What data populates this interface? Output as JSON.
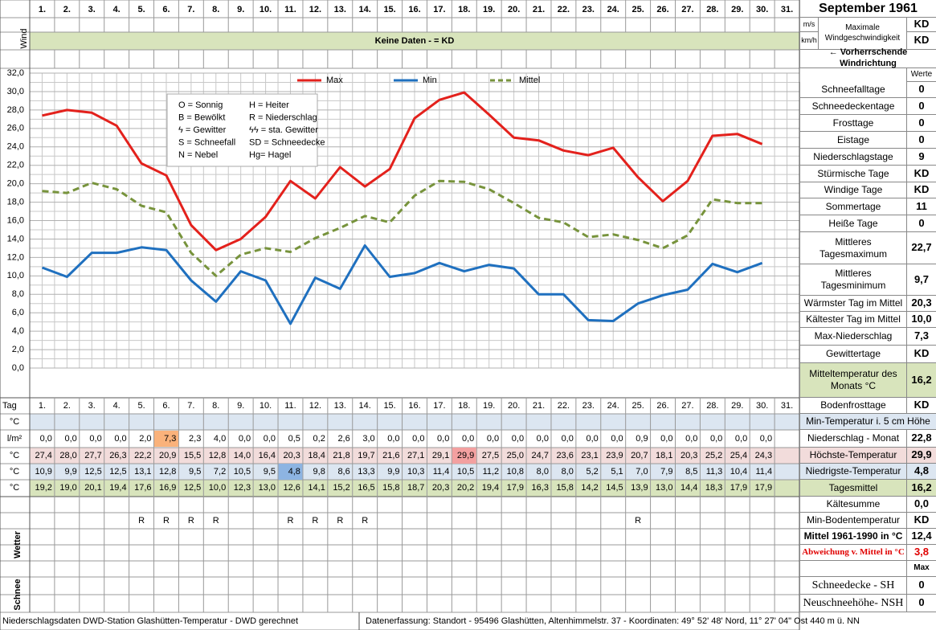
{
  "chart_data": {
    "type": "line",
    "categories": [
      "1.",
      "2.",
      "3.",
      "4.",
      "5.",
      "6.",
      "7.",
      "8.",
      "9.",
      "10.",
      "11.",
      "12.",
      "13.",
      "14.",
      "15.",
      "16.",
      "17.",
      "18.",
      "19.",
      "20.",
      "21.",
      "22.",
      "23.",
      "24.",
      "25.",
      "26.",
      "27.",
      "28.",
      "29.",
      "30.",
      "31."
    ],
    "series": [
      {
        "name": "Max",
        "color": "#e3211c",
        "dash": false,
        "values": [
          27.4,
          28.0,
          27.7,
          26.3,
          22.2,
          20.9,
          15.5,
          12.8,
          14.0,
          16.4,
          20.3,
          18.4,
          21.8,
          19.7,
          21.6,
          27.1,
          29.1,
          29.9,
          27.5,
          25.0,
          24.7,
          23.6,
          23.1,
          23.9,
          20.7,
          18.1,
          20.3,
          25.2,
          25.4,
          24.3,
          null
        ]
      },
      {
        "name": "Min",
        "color": "#1f70bf",
        "dash": false,
        "values": [
          10.9,
          9.9,
          12.5,
          12.5,
          13.1,
          12.8,
          9.5,
          7.2,
          10.5,
          9.5,
          4.8,
          9.8,
          8.6,
          13.3,
          9.9,
          10.3,
          11.4,
          10.5,
          11.2,
          10.8,
          8.0,
          8.0,
          5.2,
          5.1,
          7.0,
          7.9,
          8.5,
          11.3,
          10.4,
          11.4,
          null
        ]
      },
      {
        "name": "Mittel",
        "color": "#77933c",
        "dash": true,
        "values": [
          19.2,
          19.0,
          20.1,
          19.4,
          17.6,
          16.9,
          12.5,
          10.0,
          12.3,
          13.0,
          12.6,
          14.1,
          15.2,
          16.5,
          15.8,
          18.7,
          20.3,
          20.2,
          19.4,
          17.9,
          16.3,
          15.8,
          14.2,
          14.5,
          13.9,
          13.0,
          14.4,
          18.3,
          17.9,
          17.9,
          null
        ]
      }
    ],
    "ylim": [
      0,
      32
    ],
    "yticks": [
      {
        "value": 0,
        "label": "0,0"
      },
      {
        "value": 2,
        "label": "2,0"
      },
      {
        "value": 4,
        "label": "4,0"
      },
      {
        "value": 6,
        "label": "6,0"
      },
      {
        "value": 8,
        "label": "8,0"
      },
      {
        "value": 10,
        "label": "10,0"
      },
      {
        "value": 12,
        "label": "12,0"
      },
      {
        "value": 14,
        "label": "14,0"
      },
      {
        "value": 16,
        "label": "16,0"
      },
      {
        "value": 18,
        "label": "18,0"
      },
      {
        "value": 20,
        "label": "20,0"
      },
      {
        "value": 22,
        "label": "22,0"
      },
      {
        "value": 24,
        "label": "24,0"
      },
      {
        "value": 26,
        "label": "26,0"
      },
      {
        "value": 28,
        "label": "28,0"
      },
      {
        "value": 30,
        "label": "30,0"
      },
      {
        "value": 32,
        "label": "32,0"
      }
    ],
    "grid": true,
    "legend": "top",
    "key": [
      "O = Sonnig",
      "H = Heiter",
      "B = Bewölkt",
      "R = Niederschlag",
      "ϟ = Gewitter",
      "ϟϟ = sta. Gewitter",
      "S = Schneefall",
      "SD = Schneedecke",
      "N = Nebel",
      "Hg= Hagel"
    ]
  },
  "header": {
    "title": "September 1961",
    "wind_label": "Wind",
    "no_data": "Keine Daten -  = KD",
    "unit_ms": "m/s",
    "unit_kmh": "km/h",
    "max_wind_label": "Maximale Windgeschwindigkeit",
    "max_wind_ms": "KD",
    "max_wind_kmh": "KD",
    "wind_direction": "← Vorherrschende Windrichtung"
  },
  "table": {
    "day_label": "Tag",
    "units": [
      "°C",
      "l/m²",
      "°C",
      "°C",
      "°C"
    ],
    "precipitation": [
      "0,0",
      "0,0",
      "0,0",
      "0,0",
      "2,0",
      "7,3",
      "2,3",
      "4,0",
      "0,0",
      "0,0",
      "0,5",
      "0,2",
      "2,6",
      "3,0",
      "0,0",
      "0,0",
      "0,0",
      "0,0",
      "0,0",
      "0,0",
      "0,0",
      "0,0",
      "0,0",
      "0,0",
      "0,9",
      "0,0",
      "0,0",
      "0,0",
      "0,0",
      "0,0"
    ],
    "max": [
      "27,4",
      "28,0",
      "27,7",
      "26,3",
      "22,2",
      "20,9",
      "15,5",
      "12,8",
      "14,0",
      "16,4",
      "20,3",
      "18,4",
      "21,8",
      "19,7",
      "21,6",
      "27,1",
      "29,1",
      "29,9",
      "27,5",
      "25,0",
      "24,7",
      "23,6",
      "23,1",
      "23,9",
      "20,7",
      "18,1",
      "20,3",
      "25,2",
      "25,4",
      "24,3"
    ],
    "min": [
      "10,9",
      "9,9",
      "12,5",
      "12,5",
      "13,1",
      "12,8",
      "9,5",
      "7,2",
      "10,5",
      "9,5",
      "4,8",
      "9,8",
      "8,6",
      "13,3",
      "9,9",
      "10,3",
      "11,4",
      "10,5",
      "11,2",
      "10,8",
      "8,0",
      "8,0",
      "5,2",
      "5,1",
      "7,0",
      "7,9",
      "8,5",
      "11,3",
      "10,4",
      "11,4"
    ],
    "mean": [
      "19,2",
      "19,0",
      "20,1",
      "19,4",
      "17,6",
      "16,9",
      "12,5",
      "10,0",
      "12,3",
      "13,0",
      "12,6",
      "14,1",
      "15,2",
      "16,5",
      "15,8",
      "18,7",
      "20,3",
      "20,2",
      "19,4",
      "17,9",
      "16,3",
      "15,8",
      "14,2",
      "14,5",
      "13,9",
      "13,0",
      "14,4",
      "18,3",
      "17,9",
      "17,9"
    ],
    "weather_label": "Wetter",
    "weather": [
      null,
      null,
      null,
      null,
      "R",
      "R",
      "R",
      "R",
      null,
      null,
      "R",
      "R",
      "R",
      "R",
      null,
      null,
      null,
      null,
      null,
      null,
      null,
      null,
      null,
      null,
      "R",
      null,
      null,
      null,
      null,
      null,
      null
    ],
    "snow_label": "Schnee"
  },
  "summary": {
    "header": "Werte",
    "snow_header": "Max",
    "rows": [
      {
        "label": "Schneefalltage",
        "value": "0"
      },
      {
        "label": "Schneedeckentage",
        "value": "0"
      },
      {
        "label": "Frosttage",
        "value": "0"
      },
      {
        "label": "Eistage",
        "value": "0"
      },
      {
        "label": "Niederschlagstage",
        "value": "9"
      },
      {
        "label": "Stürmische Tage",
        "value": "KD"
      },
      {
        "label": "Windige Tage",
        "value": "KD"
      },
      {
        "label": "Sommertage",
        "value": "11"
      },
      {
        "label": "Heiße Tage",
        "value": "0"
      },
      {
        "label": "Mittleres Tagesmaximum",
        "value": "22,7"
      },
      {
        "label": "Mittleres Tagesminimum",
        "value": "9,7"
      },
      {
        "label": "Wärmster Tag im Mittel",
        "value": "20,3"
      },
      {
        "label": "Kältester Tag im Mittel",
        "value": "10,0"
      },
      {
        "label": "Max-Niederschlag",
        "value": "7,3"
      },
      {
        "label": "Gewittertage",
        "value": "KD"
      },
      {
        "label": "Mitteltemperatur des Monats °C",
        "value": "16,2"
      },
      {
        "label": "Bodenfrosttage",
        "value": "KD"
      },
      {
        "label": "Min-Temperatur i. 5 cm Höhe"
      },
      {
        "label": "Niederschlag - Monat",
        "value": "22,8"
      },
      {
        "label": "Höchste-Temperatur",
        "value": "29,9"
      },
      {
        "label": "Niedrigste-Temperatur",
        "value": "4,8"
      },
      {
        "label": "Tagesmittel",
        "value": "16,2"
      },
      {
        "label": "Kältesumme",
        "value": "0,0"
      },
      {
        "label": "Min-Bodentemperatur",
        "value": "KD"
      },
      {
        "label": "Mittel 1961-1990 in °C",
        "value": "12,4"
      },
      {
        "label": "Abweichung v. Mittel in °C",
        "value": "3,8"
      },
      {
        "label": "Schneedecke -  SH",
        "value": "0"
      },
      {
        "label": "Neuschneehöhe- NSH",
        "value": "0"
      }
    ]
  },
  "footer": {
    "left": "Niederschlagsdaten DWD-Station Glashütten-Temperatur -  DWD gerechnet",
    "right": "Datenerfassung: Standort -  95496  Glashütten, Altenhimmelstr. 37 - Koordinaten:  49° 52' 48' Nord,   11° 27' 04\" Ost   440 m ü. NN"
  }
}
